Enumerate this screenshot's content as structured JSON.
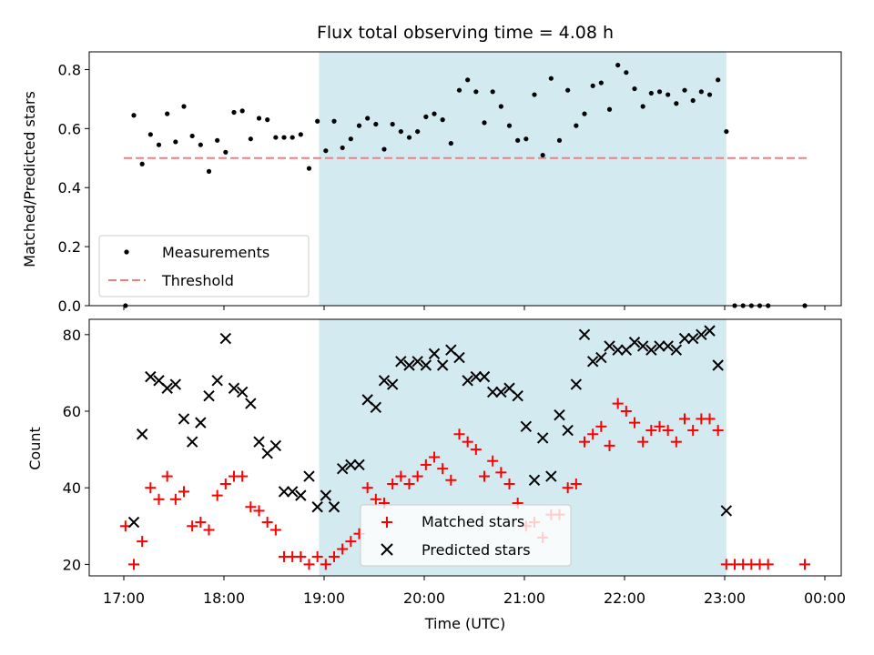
{
  "chart_data": [
    {
      "type": "scatter",
      "title": "Flux total observing time = 4.08 h",
      "ylabel": "Matched/Predicted stars",
      "xlabel": "",
      "ylim": [
        0,
        0.86
      ],
      "yticks": [
        0.0,
        0.2,
        0.4,
        0.6,
        0.8
      ],
      "ytick_labels": [
        "0.0",
        "0.2",
        "0.4",
        "0.6",
        "0.8"
      ],
      "legend_position": "lower-left",
      "legend": [
        "Measurements",
        "Threshold"
      ],
      "observing_window": {
        "start": "18:57",
        "end": "23:01",
        "color": "#d4eaf1"
      },
      "threshold": {
        "value": 0.5,
        "start": "17:00",
        "end": "23:50",
        "color": "#f08080"
      },
      "series": [
        {
          "name": "Measurements",
          "marker": "dot",
          "color": "#000000",
          "x": [
            "17:01",
            "17:06",
            "17:11",
            "17:16",
            "17:21",
            "17:26",
            "17:31",
            "17:36",
            "17:41",
            "17:46",
            "17:51",
            "17:56",
            "18:01",
            "18:06",
            "18:11",
            "18:16",
            "18:21",
            "18:26",
            "18:31",
            "18:36",
            "18:41",
            "18:46",
            "18:51",
            "18:56",
            "19:01",
            "19:06",
            "19:11",
            "19:16",
            "19:21",
            "19:26",
            "19:31",
            "19:36",
            "19:41",
            "19:46",
            "19:51",
            "19:56",
            "20:01",
            "20:06",
            "20:11",
            "20:16",
            "20:21",
            "20:26",
            "20:31",
            "20:36",
            "20:41",
            "20:46",
            "20:51",
            "20:56",
            "21:01",
            "21:06",
            "21:11",
            "21:16",
            "21:21",
            "21:26",
            "21:31",
            "21:36",
            "21:41",
            "21:46",
            "21:51",
            "21:56",
            "22:01",
            "22:06",
            "22:11",
            "22:16",
            "22:21",
            "22:26",
            "22:31",
            "22:36",
            "22:41",
            "22:46",
            "22:51",
            "22:56",
            "23:01",
            "23:06",
            "23:11",
            "23:16",
            "23:21",
            "23:26",
            "23:48"
          ],
          "y": [
            0.0,
            0.645,
            0.48,
            0.58,
            0.545,
            0.65,
            0.555,
            0.675,
            0.575,
            0.545,
            0.455,
            0.56,
            0.52,
            0.655,
            0.66,
            0.565,
            0.635,
            0.63,
            0.57,
            0.57,
            0.57,
            0.58,
            0.465,
            0.625,
            0.525,
            0.625,
            0.535,
            0.565,
            0.61,
            0.635,
            0.615,
            0.53,
            0.615,
            0.59,
            0.57,
            0.59,
            0.64,
            0.65,
            0.63,
            0.55,
            0.73,
            0.765,
            0.725,
            0.62,
            0.725,
            0.675,
            0.61,
            0.56,
            0.565,
            0.715,
            0.51,
            0.77,
            0.56,
            0.73,
            0.61,
            0.65,
            0.745,
            0.755,
            0.665,
            0.815,
            0.79,
            0.735,
            0.675,
            0.72,
            0.725,
            0.715,
            0.685,
            0.73,
            0.695,
            0.725,
            0.715,
            0.765,
            0.59,
            0.0,
            0.0,
            0.0,
            0.0,
            0.0,
            0.0
          ]
        }
      ]
    },
    {
      "type": "scatter",
      "title": "",
      "ylabel": "Count",
      "xlabel": "Time (UTC)",
      "ylim": [
        17.0,
        84.0
      ],
      "yticks": [
        20,
        40,
        60,
        80
      ],
      "ytick_labels": [
        "20",
        "40",
        "60",
        "80"
      ],
      "xticks": [
        "17:00",
        "18:00",
        "19:00",
        "20:00",
        "21:00",
        "22:00",
        "23:00",
        "00:00"
      ],
      "xtick_labels": [
        "17:00",
        "18:00",
        "19:00",
        "20:00",
        "21:00",
        "22:00",
        "23:00",
        "00:00"
      ],
      "legend_position": "lower-center",
      "legend": [
        "Matched stars",
        "Predicted stars"
      ],
      "observing_window": {
        "start": "18:57",
        "end": "23:01",
        "color": "#d4eaf1"
      },
      "series": [
        {
          "name": "Matched stars",
          "marker": "plus",
          "color": "#ff0000",
          "x": [
            "17:01",
            "17:06",
            "17:11",
            "17:16",
            "17:21",
            "17:26",
            "17:31",
            "17:36",
            "17:41",
            "17:46",
            "17:51",
            "17:56",
            "18:01",
            "18:06",
            "18:11",
            "18:16",
            "18:21",
            "18:26",
            "18:31",
            "18:36",
            "18:41",
            "18:46",
            "18:51",
            "18:56",
            "19:01",
            "19:06",
            "19:11",
            "19:16",
            "19:21",
            "19:26",
            "19:31",
            "19:36",
            "19:41",
            "19:46",
            "19:51",
            "19:56",
            "20:01",
            "20:06",
            "20:11",
            "20:16",
            "20:21",
            "20:26",
            "20:31",
            "20:36",
            "20:41",
            "20:46",
            "20:51",
            "20:56",
            "21:01",
            "21:06",
            "21:11",
            "21:16",
            "21:21",
            "21:26",
            "21:31",
            "21:36",
            "21:41",
            "21:46",
            "21:51",
            "21:56",
            "22:01",
            "22:06",
            "22:11",
            "22:16",
            "22:21",
            "22:26",
            "22:31",
            "22:36",
            "22:41",
            "22:46",
            "22:51",
            "22:56",
            "23:01",
            "23:06",
            "23:11",
            "23:16",
            "23:21",
            "23:26",
            "23:48"
          ],
          "y": [
            30,
            20,
            26,
            40,
            37,
            43,
            37,
            39,
            30,
            31,
            29,
            38,
            41,
            43,
            43,
            35,
            34,
            31,
            29,
            22,
            22,
            22,
            20,
            22,
            20,
            22,
            24,
            26,
            28,
            40,
            37,
            36,
            41,
            43,
            41,
            43,
            46,
            48,
            45,
            42,
            54,
            52,
            50,
            43,
            47,
            44,
            41,
            36,
            30,
            31,
            27,
            33,
            33,
            40,
            41,
            52,
            54,
            56,
            51,
            62,
            60,
            57,
            52,
            55,
            56,
            55,
            52,
            58,
            55,
            58,
            58,
            55,
            20,
            20,
            20,
            20,
            20,
            20,
            20
          ]
        },
        {
          "name": "Predicted stars",
          "marker": "cross",
          "color": "#000000",
          "x": [
            "17:06",
            "17:11",
            "17:16",
            "17:21",
            "17:26",
            "17:31",
            "17:36",
            "17:41",
            "17:46",
            "17:51",
            "17:56",
            "18:01",
            "18:06",
            "18:11",
            "18:16",
            "18:21",
            "18:26",
            "18:31",
            "18:36",
            "18:41",
            "18:46",
            "18:51",
            "18:56",
            "19:01",
            "19:06",
            "19:11",
            "19:16",
            "19:21",
            "19:26",
            "19:31",
            "19:36",
            "19:41",
            "19:46",
            "19:51",
            "19:56",
            "20:01",
            "20:06",
            "20:11",
            "20:16",
            "20:21",
            "20:26",
            "20:31",
            "20:36",
            "20:41",
            "20:46",
            "20:51",
            "20:56",
            "21:01",
            "21:06",
            "21:11",
            "21:16",
            "21:21",
            "21:26",
            "21:31",
            "21:36",
            "21:41",
            "21:46",
            "21:51",
            "21:56",
            "22:01",
            "22:06",
            "22:11",
            "22:16",
            "22:21",
            "22:26",
            "22:31",
            "22:36",
            "22:41",
            "22:46",
            "22:51",
            "22:56",
            "23:01"
          ],
          "y": [
            31,
            54,
            69,
            68,
            66,
            67,
            58,
            52,
            57,
            64,
            68,
            79,
            66,
            65,
            62,
            52,
            49,
            51,
            39,
            39,
            38,
            43,
            35,
            38,
            35,
            45,
            46,
            46,
            63,
            61,
            68,
            67,
            73,
            72,
            73,
            72,
            75,
            72,
            76,
            74,
            68,
            69,
            69,
            65,
            65,
            66,
            64,
            56,
            42,
            53,
            43,
            59,
            55,
            67,
            80,
            73,
            74,
            77,
            76,
            76,
            78,
            77,
            76,
            77,
            77,
            76,
            79,
            79,
            80,
            81,
            72,
            34
          ]
        }
      ]
    }
  ]
}
